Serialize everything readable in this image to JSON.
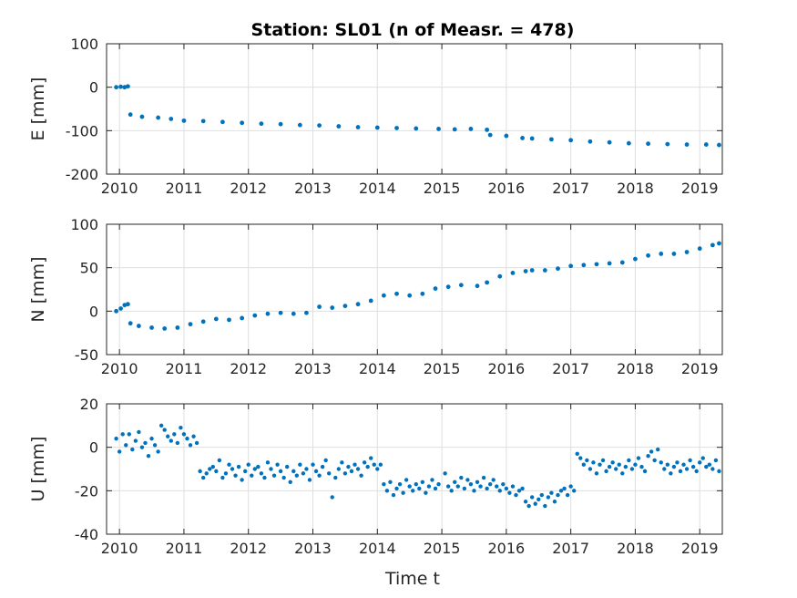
{
  "figure": {
    "title": "Station: SL01 (n of Measr. = 478)",
    "xlabel": "Time t",
    "accent_color": "#0072BD"
  },
  "chart_data": [
    {
      "type": "scatter",
      "name": "E",
      "ylabel": "E [mm]",
      "xlim": [
        2009.8,
        2019.35
      ],
      "ylim": [
        -200,
        100
      ],
      "yticks": [
        100,
        0,
        -100,
        -200
      ],
      "xticks": [
        2010,
        2011,
        2012,
        2013,
        2014,
        2015,
        2016,
        2017,
        2018,
        2019
      ],
      "grid": true,
      "color": "#0072BD",
      "points": [
        [
          2009.95,
          0
        ],
        [
          2010.02,
          1
        ],
        [
          2010.08,
          0
        ],
        [
          2010.13,
          2
        ],
        [
          2010.17,
          -63
        ],
        [
          2010.35,
          -68
        ],
        [
          2010.6,
          -70
        ],
        [
          2010.8,
          -73
        ],
        [
          2011.0,
          -77
        ],
        [
          2011.3,
          -78
        ],
        [
          2011.6,
          -80
        ],
        [
          2011.9,
          -82
        ],
        [
          2012.2,
          -84
        ],
        [
          2012.5,
          -85
        ],
        [
          2012.8,
          -87
        ],
        [
          2013.1,
          -88
        ],
        [
          2013.4,
          -90
        ],
        [
          2013.7,
          -92
        ],
        [
          2014.0,
          -93
        ],
        [
          2014.3,
          -94
        ],
        [
          2014.6,
          -95
        ],
        [
          2014.95,
          -96
        ],
        [
          2015.2,
          -97
        ],
        [
          2015.45,
          -96
        ],
        [
          2015.7,
          -98
        ],
        [
          2015.75,
          -110
        ],
        [
          2016.0,
          -112
        ],
        [
          2016.25,
          -117
        ],
        [
          2016.4,
          -118
        ],
        [
          2016.7,
          -120
        ],
        [
          2017.0,
          -122
        ],
        [
          2017.3,
          -125
        ],
        [
          2017.6,
          -127
        ],
        [
          2017.9,
          -129
        ],
        [
          2018.2,
          -130
        ],
        [
          2018.5,
          -131
        ],
        [
          2018.8,
          -132
        ],
        [
          2019.1,
          -132
        ],
        [
          2019.3,
          -133
        ]
      ]
    },
    {
      "type": "scatter",
      "name": "N",
      "ylabel": "N [mm]",
      "xlim": [
        2009.8,
        2019.35
      ],
      "ylim": [
        -50,
        100
      ],
      "yticks": [
        100,
        50,
        0,
        -50
      ],
      "xticks": [
        2010,
        2011,
        2012,
        2013,
        2014,
        2015,
        2016,
        2017,
        2018,
        2019
      ],
      "grid": true,
      "color": "#0072BD",
      "points": [
        [
          2009.95,
          0
        ],
        [
          2010.02,
          3
        ],
        [
          2010.08,
          7
        ],
        [
          2010.13,
          8
        ],
        [
          2010.17,
          -14
        ],
        [
          2010.3,
          -17
        ],
        [
          2010.5,
          -19
        ],
        [
          2010.7,
          -20
        ],
        [
          2010.9,
          -19
        ],
        [
          2011.1,
          -15
        ],
        [
          2011.3,
          -12
        ],
        [
          2011.5,
          -9
        ],
        [
          2011.7,
          -10
        ],
        [
          2011.9,
          -8
        ],
        [
          2012.1,
          -5
        ],
        [
          2012.3,
          -3
        ],
        [
          2012.5,
          -2
        ],
        [
          2012.7,
          -3
        ],
        [
          2012.9,
          -2
        ],
        [
          2013.1,
          5
        ],
        [
          2013.3,
          4
        ],
        [
          2013.5,
          6
        ],
        [
          2013.7,
          8
        ],
        [
          2013.9,
          12
        ],
        [
          2014.1,
          18
        ],
        [
          2014.3,
          20
        ],
        [
          2014.5,
          18
        ],
        [
          2014.7,
          20
        ],
        [
          2014.9,
          26
        ],
        [
          2015.1,
          28
        ],
        [
          2015.3,
          30
        ],
        [
          2015.55,
          29
        ],
        [
          2015.7,
          33
        ],
        [
          2015.9,
          40
        ],
        [
          2016.1,
          44
        ],
        [
          2016.3,
          46
        ],
        [
          2016.4,
          47
        ],
        [
          2016.6,
          47
        ],
        [
          2016.8,
          49
        ],
        [
          2017.0,
          52
        ],
        [
          2017.2,
          53
        ],
        [
          2017.4,
          54
        ],
        [
          2017.6,
          55
        ],
        [
          2017.8,
          56
        ],
        [
          2018.0,
          60
        ],
        [
          2018.2,
          64
        ],
        [
          2018.4,
          66
        ],
        [
          2018.6,
          66
        ],
        [
          2018.8,
          68
        ],
        [
          2019.0,
          72
        ],
        [
          2019.2,
          76
        ],
        [
          2019.3,
          78
        ]
      ]
    },
    {
      "type": "scatter",
      "name": "U",
      "ylabel": "U [mm]",
      "xlabel": "Time t",
      "xlim": [
        2009.8,
        2019.35
      ],
      "ylim": [
        -40,
        20
      ],
      "yticks": [
        20,
        0,
        -20,
        -40
      ],
      "xticks": [
        2010,
        2011,
        2012,
        2013,
        2014,
        2015,
        2016,
        2017,
        2018,
        2019
      ],
      "grid": true,
      "color": "#0072BD",
      "points": [
        [
          2009.95,
          4
        ],
        [
          2010.0,
          -2
        ],
        [
          2010.05,
          6
        ],
        [
          2010.1,
          1
        ],
        [
          2010.15,
          6
        ],
        [
          2010.2,
          -1
        ],
        [
          2010.25,
          3
        ],
        [
          2010.3,
          7
        ],
        [
          2010.35,
          0
        ],
        [
          2010.4,
          2
        ],
        [
          2010.45,
          -4
        ],
        [
          2010.5,
          4
        ],
        [
          2010.55,
          1
        ],
        [
          2010.6,
          -2
        ],
        [
          2010.65,
          10
        ],
        [
          2010.7,
          8
        ],
        [
          2010.75,
          5
        ],
        [
          2010.8,
          3
        ],
        [
          2010.85,
          6
        ],
        [
          2010.9,
          2
        ],
        [
          2010.95,
          9
        ],
        [
          2011.0,
          6
        ],
        [
          2011.05,
          4
        ],
        [
          2011.1,
          1
        ],
        [
          2011.15,
          5
        ],
        [
          2011.2,
          2
        ],
        [
          2011.25,
          -11
        ],
        [
          2011.3,
          -14
        ],
        [
          2011.35,
          -12
        ],
        [
          2011.4,
          -10
        ],
        [
          2011.45,
          -9
        ],
        [
          2011.5,
          -11
        ],
        [
          2011.55,
          -6
        ],
        [
          2011.6,
          -14
        ],
        [
          2011.65,
          -12
        ],
        [
          2011.7,
          -8
        ],
        [
          2011.75,
          -10
        ],
        [
          2011.8,
          -13
        ],
        [
          2011.85,
          -9
        ],
        [
          2011.9,
          -15
        ],
        [
          2011.95,
          -11
        ],
        [
          2012.0,
          -8
        ],
        [
          2012.05,
          -13
        ],
        [
          2012.1,
          -10
        ],
        [
          2012.15,
          -9
        ],
        [
          2012.2,
          -12
        ],
        [
          2012.25,
          -14
        ],
        [
          2012.3,
          -7
        ],
        [
          2012.35,
          -10
        ],
        [
          2012.4,
          -13
        ],
        [
          2012.45,
          -8
        ],
        [
          2012.5,
          -11
        ],
        [
          2012.55,
          -14
        ],
        [
          2012.6,
          -9
        ],
        [
          2012.65,
          -16
        ],
        [
          2012.7,
          -11
        ],
        [
          2012.75,
          -13
        ],
        [
          2012.8,
          -8
        ],
        [
          2012.85,
          -12
        ],
        [
          2012.9,
          -10
        ],
        [
          2012.95,
          -15
        ],
        [
          2013.0,
          -8
        ],
        [
          2013.05,
          -11
        ],
        [
          2013.1,
          -13
        ],
        [
          2013.15,
          -9
        ],
        [
          2013.2,
          -6
        ],
        [
          2013.25,
          -12
        ],
        [
          2013.3,
          -23
        ],
        [
          2013.35,
          -14
        ],
        [
          2013.4,
          -10
        ],
        [
          2013.45,
          -7
        ],
        [
          2013.5,
          -12
        ],
        [
          2013.55,
          -9
        ],
        [
          2013.6,
          -11
        ],
        [
          2013.65,
          -8
        ],
        [
          2013.7,
          -10
        ],
        [
          2013.75,
          -13
        ],
        [
          2013.8,
          -7
        ],
        [
          2013.85,
          -9
        ],
        [
          2013.9,
          -5
        ],
        [
          2013.95,
          -8
        ],
        [
          2014.0,
          -10
        ],
        [
          2014.05,
          -8
        ],
        [
          2014.1,
          -17
        ],
        [
          2014.15,
          -20
        ],
        [
          2014.2,
          -16
        ],
        [
          2014.25,
          -22
        ],
        [
          2014.3,
          -19
        ],
        [
          2014.35,
          -17
        ],
        [
          2014.4,
          -21
        ],
        [
          2014.45,
          -15
        ],
        [
          2014.5,
          -18
        ],
        [
          2014.55,
          -20
        ],
        [
          2014.6,
          -17
        ],
        [
          2014.65,
          -19
        ],
        [
          2014.7,
          -16
        ],
        [
          2014.75,
          -21
        ],
        [
          2014.8,
          -18
        ],
        [
          2014.85,
          -15
        ],
        [
          2014.9,
          -19
        ],
        [
          2014.95,
          -17
        ],
        [
          2015.05,
          -12
        ],
        [
          2015.1,
          -18
        ],
        [
          2015.15,
          -20
        ],
        [
          2015.2,
          -16
        ],
        [
          2015.25,
          -18
        ],
        [
          2015.3,
          -14
        ],
        [
          2015.35,
          -19
        ],
        [
          2015.4,
          -15
        ],
        [
          2015.45,
          -17
        ],
        [
          2015.5,
          -20
        ],
        [
          2015.55,
          -16
        ],
        [
          2015.6,
          -18
        ],
        [
          2015.65,
          -14
        ],
        [
          2015.7,
          -19
        ],
        [
          2015.75,
          -17
        ],
        [
          2015.8,
          -15
        ],
        [
          2015.85,
          -18
        ],
        [
          2015.9,
          -20
        ],
        [
          2015.95,
          -17
        ],
        [
          2016.0,
          -19
        ],
        [
          2016.05,
          -21
        ],
        [
          2016.1,
          -18
        ],
        [
          2016.15,
          -22
        ],
        [
          2016.2,
          -20
        ],
        [
          2016.25,
          -19
        ],
        [
          2016.3,
          -25
        ],
        [
          2016.35,
          -27
        ],
        [
          2016.4,
          -23
        ],
        [
          2016.45,
          -26
        ],
        [
          2016.5,
          -24
        ],
        [
          2016.55,
          -22
        ],
        [
          2016.6,
          -27
        ],
        [
          2016.65,
          -23
        ],
        [
          2016.7,
          -21
        ],
        [
          2016.75,
          -25
        ],
        [
          2016.8,
          -22
        ],
        [
          2016.85,
          -20
        ],
        [
          2016.9,
          -19
        ],
        [
          2016.95,
          -22
        ],
        [
          2017.0,
          -18
        ],
        [
          2017.05,
          -20
        ],
        [
          2017.1,
          -3
        ],
        [
          2017.15,
          -5
        ],
        [
          2017.2,
          -8
        ],
        [
          2017.25,
          -6
        ],
        [
          2017.3,
          -10
        ],
        [
          2017.35,
          -7
        ],
        [
          2017.4,
          -12
        ],
        [
          2017.45,
          -8
        ],
        [
          2017.5,
          -6
        ],
        [
          2017.55,
          -11
        ],
        [
          2017.6,
          -9
        ],
        [
          2017.65,
          -7
        ],
        [
          2017.7,
          -10
        ],
        [
          2017.75,
          -8
        ],
        [
          2017.8,
          -12
        ],
        [
          2017.85,
          -9
        ],
        [
          2017.9,
          -6
        ],
        [
          2017.95,
          -10
        ],
        [
          2018.0,
          -8
        ],
        [
          2018.05,
          -5
        ],
        [
          2018.1,
          -9
        ],
        [
          2018.15,
          -11
        ],
        [
          2018.2,
          -4
        ],
        [
          2018.25,
          -2
        ],
        [
          2018.3,
          -6
        ],
        [
          2018.35,
          -1
        ],
        [
          2018.4,
          -7
        ],
        [
          2018.45,
          -10
        ],
        [
          2018.5,
          -8
        ],
        [
          2018.55,
          -12
        ],
        [
          2018.6,
          -9
        ],
        [
          2018.65,
          -7
        ],
        [
          2018.7,
          -11
        ],
        [
          2018.75,
          -8
        ],
        [
          2018.8,
          -10
        ],
        [
          2018.85,
          -6
        ],
        [
          2018.9,
          -9
        ],
        [
          2018.95,
          -11
        ],
        [
          2019.0,
          -7
        ],
        [
          2019.05,
          -5
        ],
        [
          2019.1,
          -9
        ],
        [
          2019.15,
          -8
        ],
        [
          2019.2,
          -10
        ],
        [
          2019.25,
          -6
        ],
        [
          2019.3,
          -11
        ]
      ]
    }
  ]
}
